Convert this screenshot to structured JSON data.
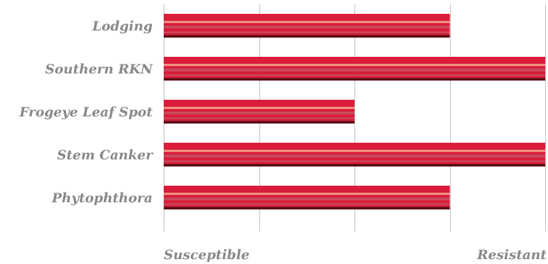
{
  "chart_data": {
    "type": "bar",
    "orientation": "horizontal",
    "categories": [
      "Lodging",
      "Southern RKN",
      "Frogeye Leaf Spot",
      "Stem Canker",
      "Phytophthora"
    ],
    "values": [
      4,
      5,
      3,
      5,
      4
    ],
    "xlim": [
      1,
      5
    ],
    "x_ticks": [
      1,
      2,
      3,
      4,
      5
    ],
    "x_min_label": "Susceptible",
    "x_max_label": "Resistant",
    "grid": true,
    "legend": "none",
    "colors": {
      "bar_main": "#d91d3a",
      "bar_highlight": "#f29a86",
      "bar_mid": "#c9485a",
      "bar_dark": "#5a0b12",
      "grid": "#bfbfbf",
      "text": "#888888"
    }
  }
}
